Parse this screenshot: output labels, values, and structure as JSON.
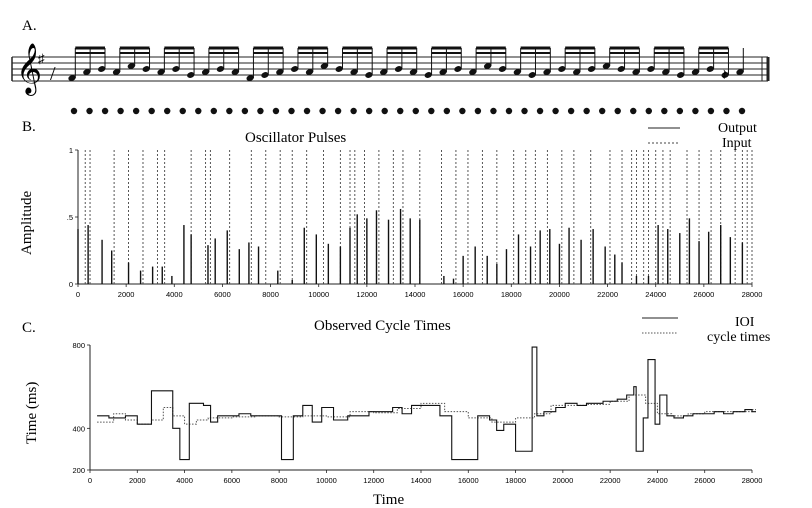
{
  "figure": {
    "panel_a": {
      "label": "A."
    },
    "panel_b": {
      "label": "B."
    },
    "panel_c": {
      "label": "C."
    }
  },
  "chart_data": [
    {
      "type": "notation",
      "panel": "A",
      "note_count": 46,
      "dot_count": 44
    },
    {
      "type": "bar",
      "panel": "B",
      "title": "Oscillator Pulses",
      "ylabel": "Amplitude",
      "xlabel": "",
      "xlim": [
        0,
        28000
      ],
      "ylim": [
        0,
        1
      ],
      "yticks": [
        "0",
        ".5",
        "1"
      ],
      "xticks": [
        "0",
        "2000",
        "4000",
        "6000",
        "8000",
        "10000",
        "12000",
        "14000",
        "16000",
        "18000",
        "20000",
        "22000",
        "24000",
        "26000",
        "28000"
      ],
      "legend": {
        "placement": "top-right",
        "entries": [
          "Output",
          "Input"
        ]
      },
      "series": [
        {
          "name": "Output",
          "style": "solid",
          "x": [
            0,
            420,
            1000,
            1400,
            2100,
            2600,
            3100,
            3500,
            3900,
            4400,
            4700,
            5400,
            5700,
            6200,
            6700,
            7100,
            7500,
            8300,
            8900,
            9400,
            9900,
            10400,
            10900,
            11300,
            11600,
            12000,
            12400,
            12900,
            13400,
            13800,
            14200,
            15200,
            15600,
            16000,
            16500,
            17000,
            17400,
            17800,
            18300,
            18800,
            19200,
            19600,
            20000,
            20400,
            20900,
            21400,
            21900,
            22300,
            22600,
            23200,
            23700,
            24100,
            24500,
            25000,
            25400,
            25800,
            26200,
            26700,
            27100,
            27600
          ],
          "y": [
            0.41,
            0.44,
            0.33,
            0.25,
            0.16,
            0.1,
            0.13,
            0.13,
            0.06,
            0.44,
            0.37,
            0.29,
            0.34,
            0.4,
            0.26,
            0.31,
            0.28,
            0.1,
            0.03,
            0.42,
            0.37,
            0.3,
            0.28,
            0.42,
            0.52,
            0.49,
            0.55,
            0.48,
            0.56,
            0.49,
            0.48,
            0.06,
            0.04,
            0.21,
            0.28,
            0.21,
            0.15,
            0.26,
            0.37,
            0.28,
            0.4,
            0.41,
            0.3,
            0.42,
            0.33,
            0.41,
            0.28,
            0.22,
            0.16,
            0.06,
            0.06,
            0.44,
            0.41,
            0.38,
            0.49,
            0.32,
            0.39,
            0.44,
            0.35,
            0.31
          ]
        },
        {
          "name": "Input",
          "style": "dotted",
          "x": [
            300,
            500,
            1500,
            2100,
            2700,
            3300,
            3600,
            4700,
            5300,
            5500,
            6300,
            7200,
            7800,
            8400,
            8900,
            9500,
            10200,
            10900,
            11300,
            11500,
            11900,
            12500,
            13100,
            13500,
            14200,
            15100,
            15700,
            16200,
            16800,
            17400,
            18100,
            18600,
            19000,
            19500,
            20100,
            20600,
            21300,
            22100,
            22600,
            23000,
            23200,
            23500,
            23700,
            24000,
            24300,
            24600,
            25300,
            25800,
            26300,
            26700,
            27300,
            27600,
            27800,
            28000
          ],
          "y": [
            1,
            1,
            1,
            1,
            1,
            1,
            1,
            1,
            1,
            1,
            1,
            1,
            1,
            1,
            1,
            1,
            1,
            1,
            1,
            1,
            1,
            1,
            1,
            1,
            1,
            1,
            1,
            1,
            1,
            1,
            1,
            1,
            1,
            1,
            1,
            1,
            1,
            1,
            1,
            1,
            1,
            1,
            1,
            1,
            1,
            1,
            1,
            1,
            1,
            1,
            1,
            1,
            1,
            1
          ]
        }
      ]
    },
    {
      "type": "line",
      "panel": "C",
      "step": true,
      "title": "Observed Cycle Times",
      "ylabel": "Time (ms)",
      "xlabel": "Time",
      "xlim": [
        0,
        28000
      ],
      "ylim": [
        200,
        800
      ],
      "yticks": [
        "200",
        "400",
        "800"
      ],
      "xticks": [
        "0",
        "2000",
        "4000",
        "6000",
        "8000",
        "10000",
        "12000",
        "14000",
        "16000",
        "18000",
        "20000",
        "22000",
        "24000",
        "26000",
        "28000"
      ],
      "legend": {
        "placement": "top-right",
        "entries": [
          "IOI",
          "cycle times"
        ]
      },
      "series": [
        {
          "name": "IOI",
          "style": "solid",
          "x": [
            300,
            800,
            1500,
            2000,
            2600,
            3100,
            3500,
            3800,
            4200,
            4800,
            5100,
            5400,
            5900,
            6300,
            6800,
            7400,
            7800,
            8100,
            8600,
            9000,
            9400,
            9800,
            10300,
            10900,
            11400,
            11800,
            12400,
            12800,
            13200,
            13600,
            14100,
            14800,
            15300,
            16000,
            16400,
            16900,
            17200,
            17500,
            18000,
            18500,
            18700,
            18900,
            19200,
            19700,
            20100,
            20600,
            21000,
            21700,
            22300,
            22700,
            23000,
            23100,
            23400,
            23600,
            23900,
            24100,
            24400,
            24700,
            25100,
            25500,
            25900,
            26400,
            26800,
            27200,
            27700,
            28000
          ],
          "y": [
            460,
            450,
            460,
            420,
            580,
            580,
            400,
            250,
            520,
            510,
            430,
            460,
            460,
            470,
            460,
            460,
            460,
            250,
            460,
            510,
            430,
            500,
            440,
            460,
            460,
            480,
            480,
            500,
            470,
            510,
            510,
            460,
            250,
            250,
            460,
            440,
            390,
            420,
            290,
            290,
            790,
            460,
            480,
            500,
            520,
            510,
            520,
            530,
            540,
            560,
            600,
            290,
            450,
            730,
            420,
            560,
            460,
            450,
            460,
            470,
            470,
            480,
            470,
            480,
            490,
            480
          ]
        },
        {
          "name": "cycle times",
          "style": "dotted",
          "x": [
            300,
            1000,
            1500,
            2000,
            2600,
            3100,
            3500,
            4000,
            4500,
            5000,
            6000,
            7000,
            8000,
            9000,
            10000,
            11000,
            12000,
            13000,
            14000,
            15000,
            16000,
            17000,
            18000,
            18800,
            19500,
            20000,
            21000,
            22000,
            22800,
            23500,
            24000,
            24600,
            25300,
            26000,
            27000,
            28000
          ],
          "y": [
            430,
            470,
            440,
            420,
            440,
            500,
            460,
            420,
            440,
            450,
            455,
            460,
            455,
            460,
            455,
            480,
            475,
            495,
            520,
            480,
            450,
            430,
            450,
            470,
            510,
            510,
            515,
            530,
            560,
            520,
            470,
            460,
            470,
            480,
            480,
            490
          ]
        }
      ]
    }
  ]
}
